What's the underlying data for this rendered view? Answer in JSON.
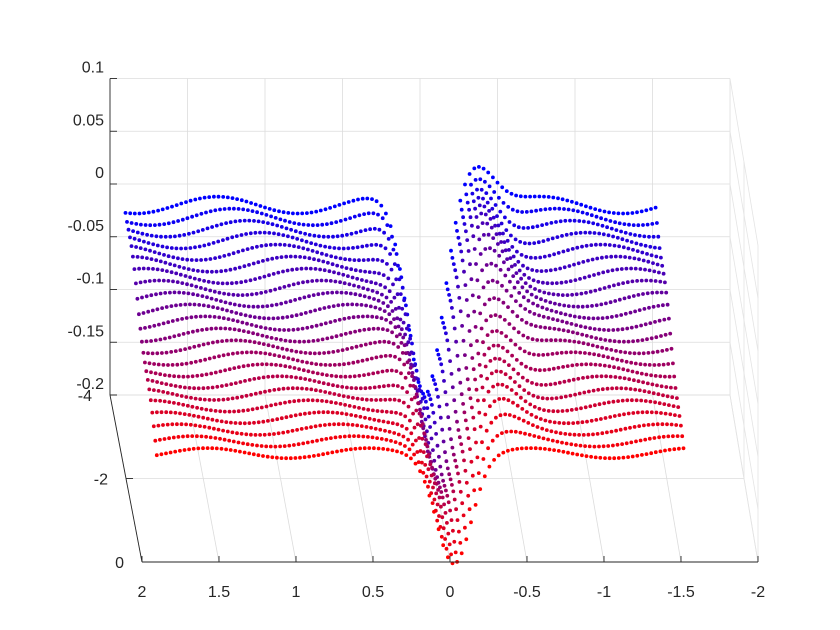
{
  "chart_data": {
    "type": "scatter",
    "view": "3d",
    "title": "",
    "xlabel": "",
    "ylabel": "",
    "zlabel": "",
    "grid": true,
    "x_ticks": [
      "2",
      "1.5",
      "1",
      "0.5",
      "0",
      "-0.5",
      "-1",
      "-1.5",
      "-2"
    ],
    "y_ticks": [
      "-4",
      "-2",
      "0"
    ],
    "z_ticks": [
      "0.1",
      "0.05",
      "0",
      "-0.05",
      "-0.1",
      "-0.15",
      "-0.2"
    ],
    "xlim": [
      -2,
      2
    ],
    "ylim": [
      -4,
      0
    ],
    "zlim": [
      -0.2,
      0.1
    ],
    "colors": {
      "start": "#0000ff",
      "end": "#ff0000",
      "axis": "#262626",
      "grid": "#dcdcdc"
    },
    "series_summary": {
      "num_curves": 22,
      "color_gradient": "blue (y = -4) to red (y = 0)",
      "baseline_z_blue": -0.02,
      "baseline_z_red": -0.1,
      "dip_x": -0.03,
      "dip_depth": -0.2,
      "peak_x": -0.35,
      "peak_z": 0.03
    }
  }
}
